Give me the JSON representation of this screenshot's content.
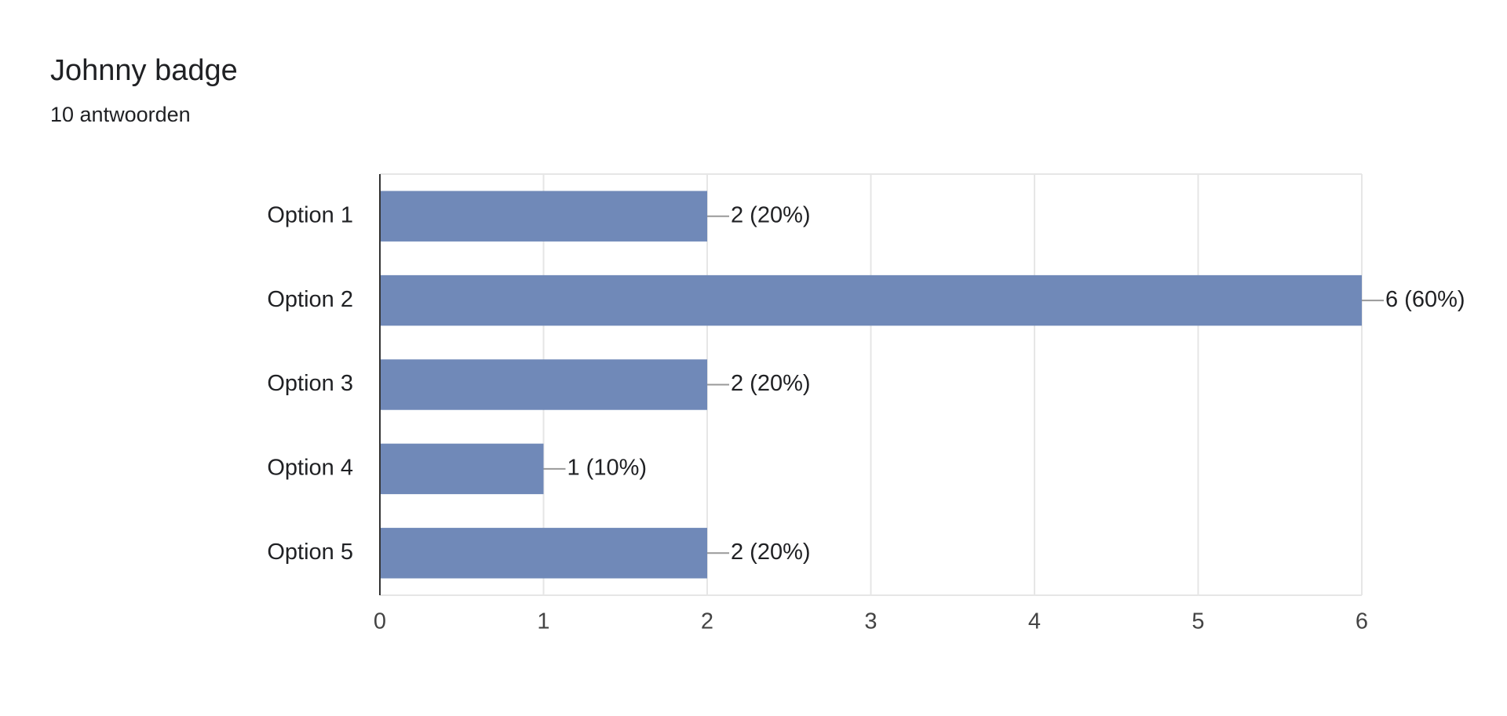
{
  "chart_data": {
    "type": "bar",
    "orientation": "horizontal",
    "title": "Johnny badge",
    "subtitle": "10 antwoorden",
    "categories": [
      "Option 1",
      "Option 2",
      "Option 3",
      "Option 4",
      "Option 5"
    ],
    "values": [
      2,
      6,
      2,
      1,
      2
    ],
    "value_labels": [
      "2 (20%)",
      "6 (60%)",
      "2 (20%)",
      "1 (10%)",
      "2 (20%)"
    ],
    "color": "#7089b8",
    "xlim": [
      0,
      6
    ],
    "xticks": [
      0,
      1,
      2,
      3,
      4,
      5,
      6
    ],
    "grid": true
  }
}
